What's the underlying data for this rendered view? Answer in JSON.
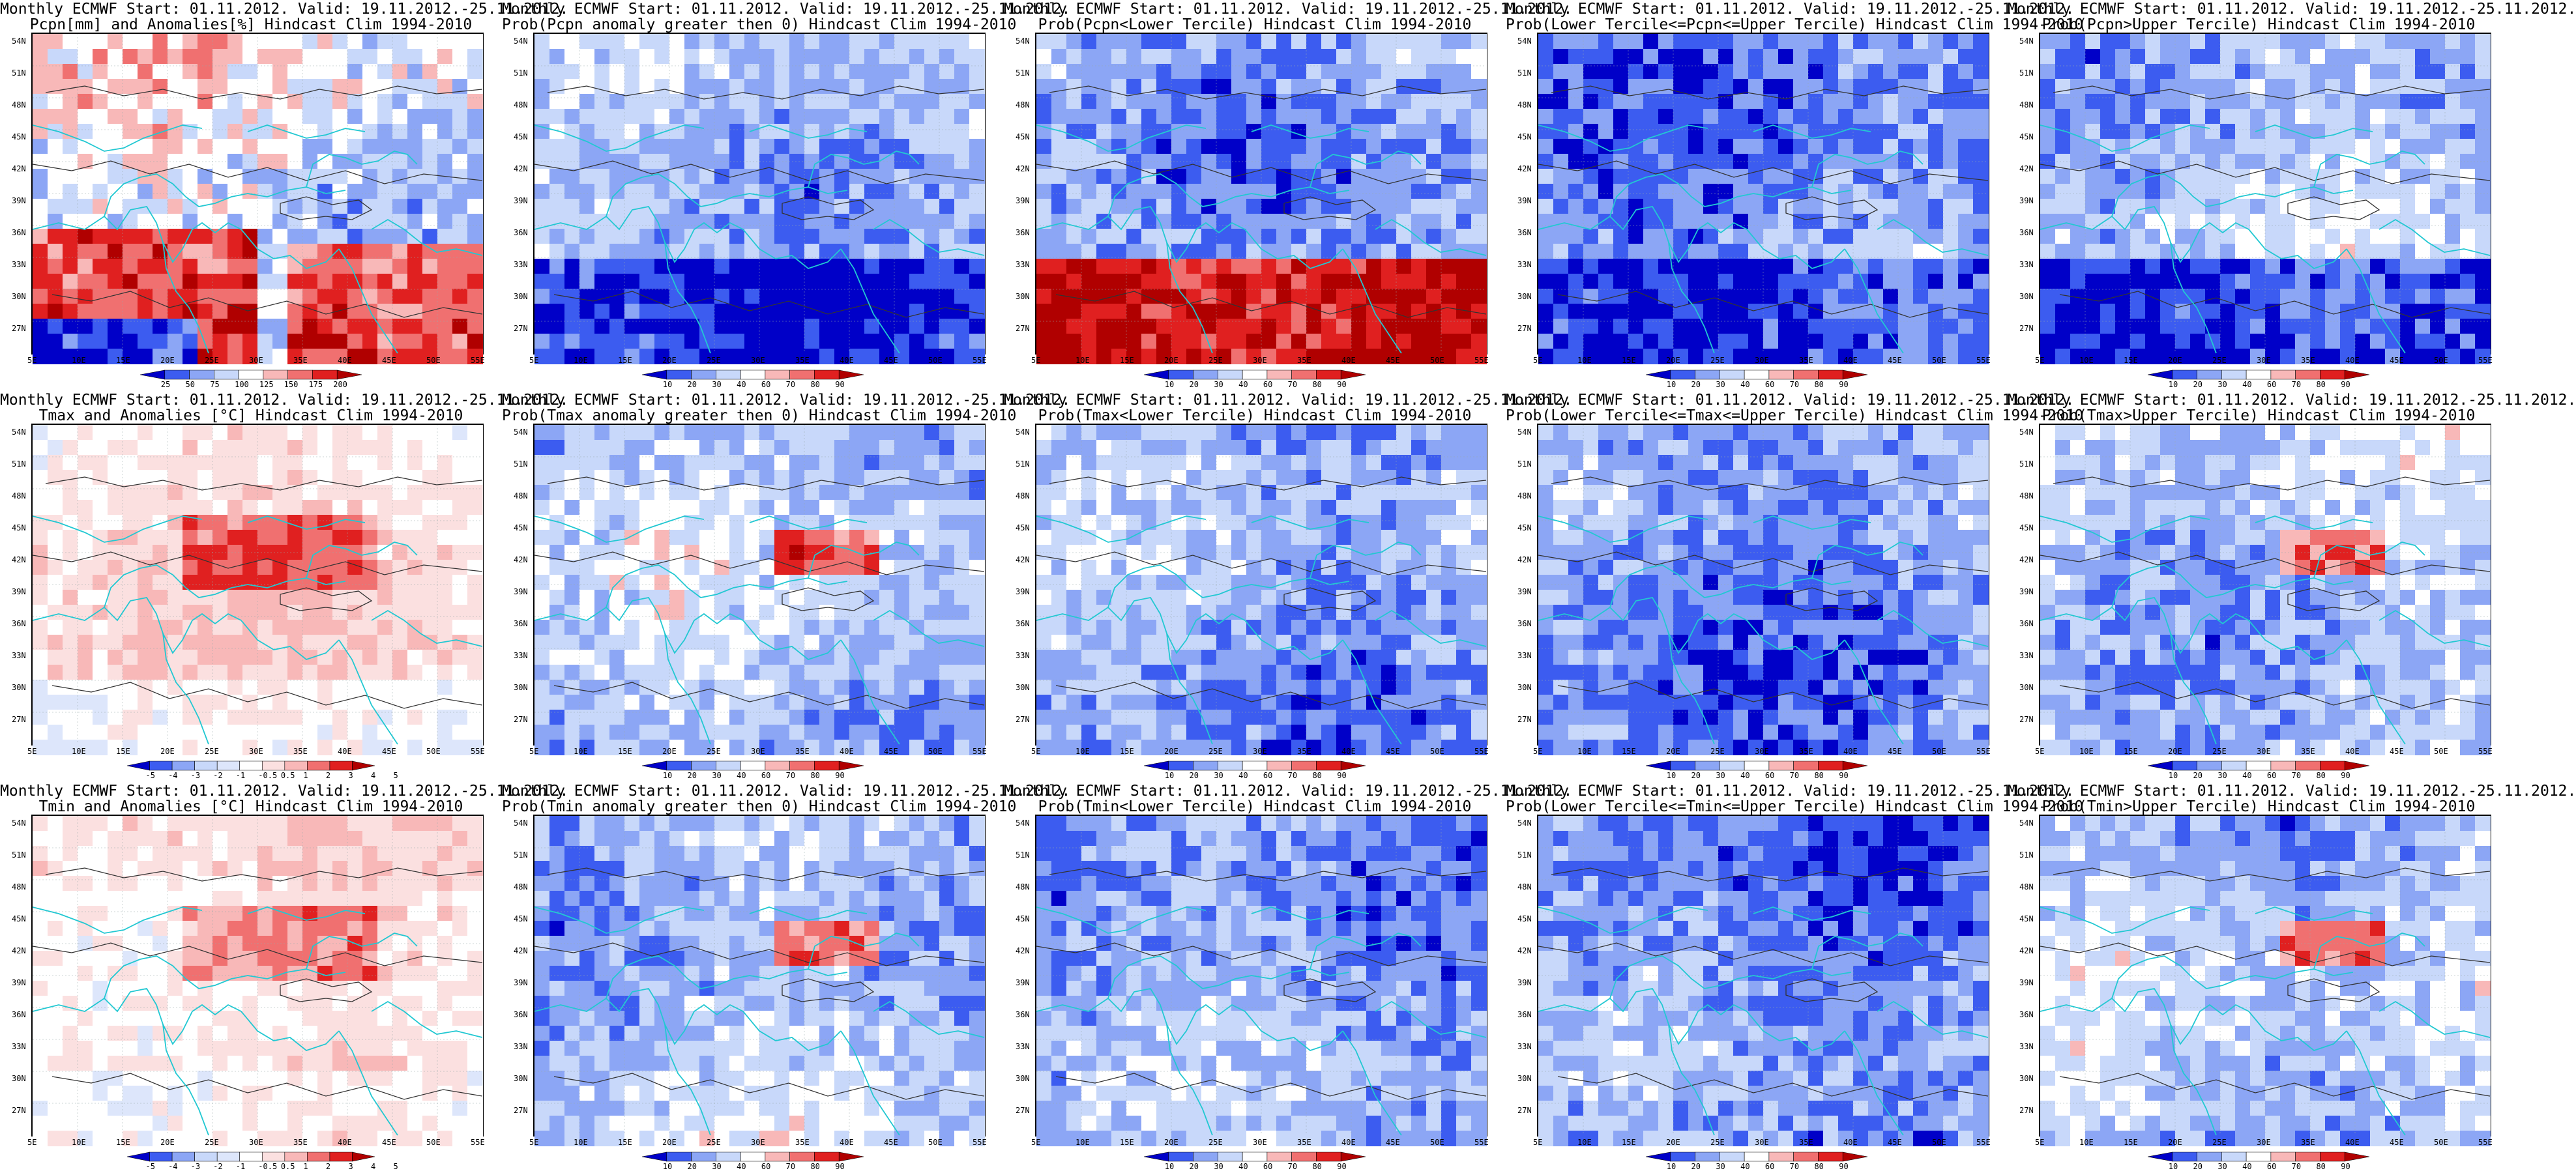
{
  "header_line": "Monthly ECMWF Start: 01.11.2012. Valid: 19.11.2012.-25.11.2012.",
  "lat_labels": [
    "54N",
    "51N",
    "48N",
    "45N",
    "42N",
    "39N",
    "36N",
    "33N",
    "30N",
    "27N"
  ],
  "lon_labels": [
    "5E",
    "10E",
    "15E",
    "20E",
    "25E",
    "30E",
    "35E",
    "40E",
    "45E",
    "50E",
    "55E"
  ],
  "anom_pcpn_labels": [
    "25",
    "50",
    "75",
    "100",
    "125",
    "150",
    "175",
    "200"
  ],
  "anom_temp_labels": [
    "-5",
    "-4",
    "-3",
    "-2",
    "-1",
    "-0.5",
    "0.5",
    "1",
    "2",
    "3",
    "4",
    "5"
  ],
  "prob_labels": [
    "10",
    "20",
    "30",
    "40",
    "60",
    "70",
    "80",
    "90"
  ],
  "colors": {
    "dark_blue": "#0000c8",
    "mid_blue": "#3c5cf0",
    "light_blue": "#8ca6f5",
    "pale_blue": "#c8d8fa",
    "pale_red": "#f8b8b8",
    "light_red": "#f07070",
    "mid_red": "#e02020",
    "dark_red": "#b00000",
    "coast": "#22c8d2",
    "contour": "#333333"
  },
  "panels": [
    {
      "id": "r1c1",
      "variable": "precipitation",
      "line1": "Monthly ECMWF Start: 01.11.2012. Valid: 19.11.2012.-25.11.2012.",
      "line2": "Pcpn[mm] and Anomalies[%] Hindcast Clim 1994-2010",
      "colorbar": "pcpn"
    },
    {
      "id": "r1c2",
      "variable": "precipitation",
      "line1": "Monthly ECMWF Start: 01.11.2012. Valid: 19.11.2012.-25.11.2012.",
      "line2": "Prob(Pcpn anomaly greater then 0) Hindcast Clim 1994-2010",
      "colorbar": "prob"
    },
    {
      "id": "r1c3",
      "variable": "precipitation",
      "line1": "Monthly ECMWF Start: 01.11.2012. Valid: 19.11.2012.-25.11.2012.",
      "line2": "Prob(Pcpn<Lower Tercile) Hindcast Clim 1994-2010",
      "colorbar": "prob"
    },
    {
      "id": "r1c4",
      "variable": "precipitation",
      "line1": "Monthly ECMWF Start: 01.11.2012. Valid: 19.11.2012.-25.11.2012.",
      "line2": "Prob(Lower Tercile<=Pcpn<=Upper Tercile) Hindcast Clim 1994-2010",
      "colorbar": "prob"
    },
    {
      "id": "r1c5",
      "variable": "precipitation",
      "line1": "Monthly ECMWF Start: 01.11.2012. Valid: 19.11.2012.-25.11.2012.",
      "line2": "Prob(Pcpn>Upper Tercile) Hindcast Clim 1994-2010",
      "colorbar": "prob"
    },
    {
      "id": "r2c1",
      "variable": "tmax",
      "line1": "Monthly ECMWF Start: 01.11.2012. Valid: 19.11.2012.-25.11.2012.",
      "line2": "Tmax and Anomalies [°C] Hindcast Clim 1994-2010",
      "colorbar": "temp"
    },
    {
      "id": "r2c2",
      "variable": "tmax",
      "line1": "Monthly ECMWF Start: 01.11.2012. Valid: 19.11.2012.-25.11.2012.",
      "line2": "Prob(Tmax anomaly greater then 0) Hindcast Clim 1994-2010",
      "colorbar": "prob"
    },
    {
      "id": "r2c3",
      "variable": "tmax",
      "line1": "Monthly ECMWF Start: 01.11.2012. Valid: 19.11.2012.-25.11.2012.",
      "line2": "Prob(Tmax<Lower Tercile) Hindcast Clim 1994-2010",
      "colorbar": "prob"
    },
    {
      "id": "r2c4",
      "variable": "tmax",
      "line1": "Monthly ECMWF Start: 01.11.2012. Valid: 19.11.2012.-25.11.2012.",
      "line2": "Prob(Lower Tercile<=Tmax<=Upper Tercile) Hindcast Clim 1994-2010",
      "colorbar": "prob"
    },
    {
      "id": "r2c5",
      "variable": "tmax",
      "line1": "Monthly ECMWF Start: 01.11.2012. Valid: 19.11.2012.-25.11.2012.",
      "line2": "Prob(Tmax>Upper Tercile) Hindcast Clim 1994-2010",
      "colorbar": "prob"
    },
    {
      "id": "r3c1",
      "variable": "tmin",
      "line1": "Monthly ECMWF Start: 01.11.2012. Valid: 19.11.2012.-25.11.2012.",
      "line2": "Tmin and Anomalies [°C] Hindcast Clim 1994-2010",
      "colorbar": "temp"
    },
    {
      "id": "r3c2",
      "variable": "tmin",
      "line1": "Monthly ECMWF Start: 01.11.2012. Valid: 19.11.2012.-25.11.2012.",
      "line2": "Prob(Tmin anomaly greater then 0) Hindcast Clim 1994-2010",
      "colorbar": "prob"
    },
    {
      "id": "r3c3",
      "variable": "tmin",
      "line1": "Monthly ECMWF Start: 01.11.2012. Valid: 19.11.2012.-25.11.2012.",
      "line2": "Prob(Tmin<Lower Tercile) Hindcast Clim 1994-2010",
      "colorbar": "prob"
    },
    {
      "id": "r3c4",
      "variable": "tmin",
      "line1": "Monthly ECMWF Start: 01.11.2012. Valid: 19.11.2012.-25.11.2012.",
      "line2": "Prob(Lower Tercile<=Tmin<=Upper Tercile) Hindcast Clim 1994-2010",
      "colorbar": "prob"
    },
    {
      "id": "r3c5",
      "variable": "tmin",
      "line1": "Monthly ECMWF Start: 01.11.2012. Valid: 19.11.2012.-25.11.2012.",
      "line2": "Prob(Tmin>Upper Tercile) Hindcast Clim 1994-2010",
      "colorbar": "prob"
    }
  ]
}
